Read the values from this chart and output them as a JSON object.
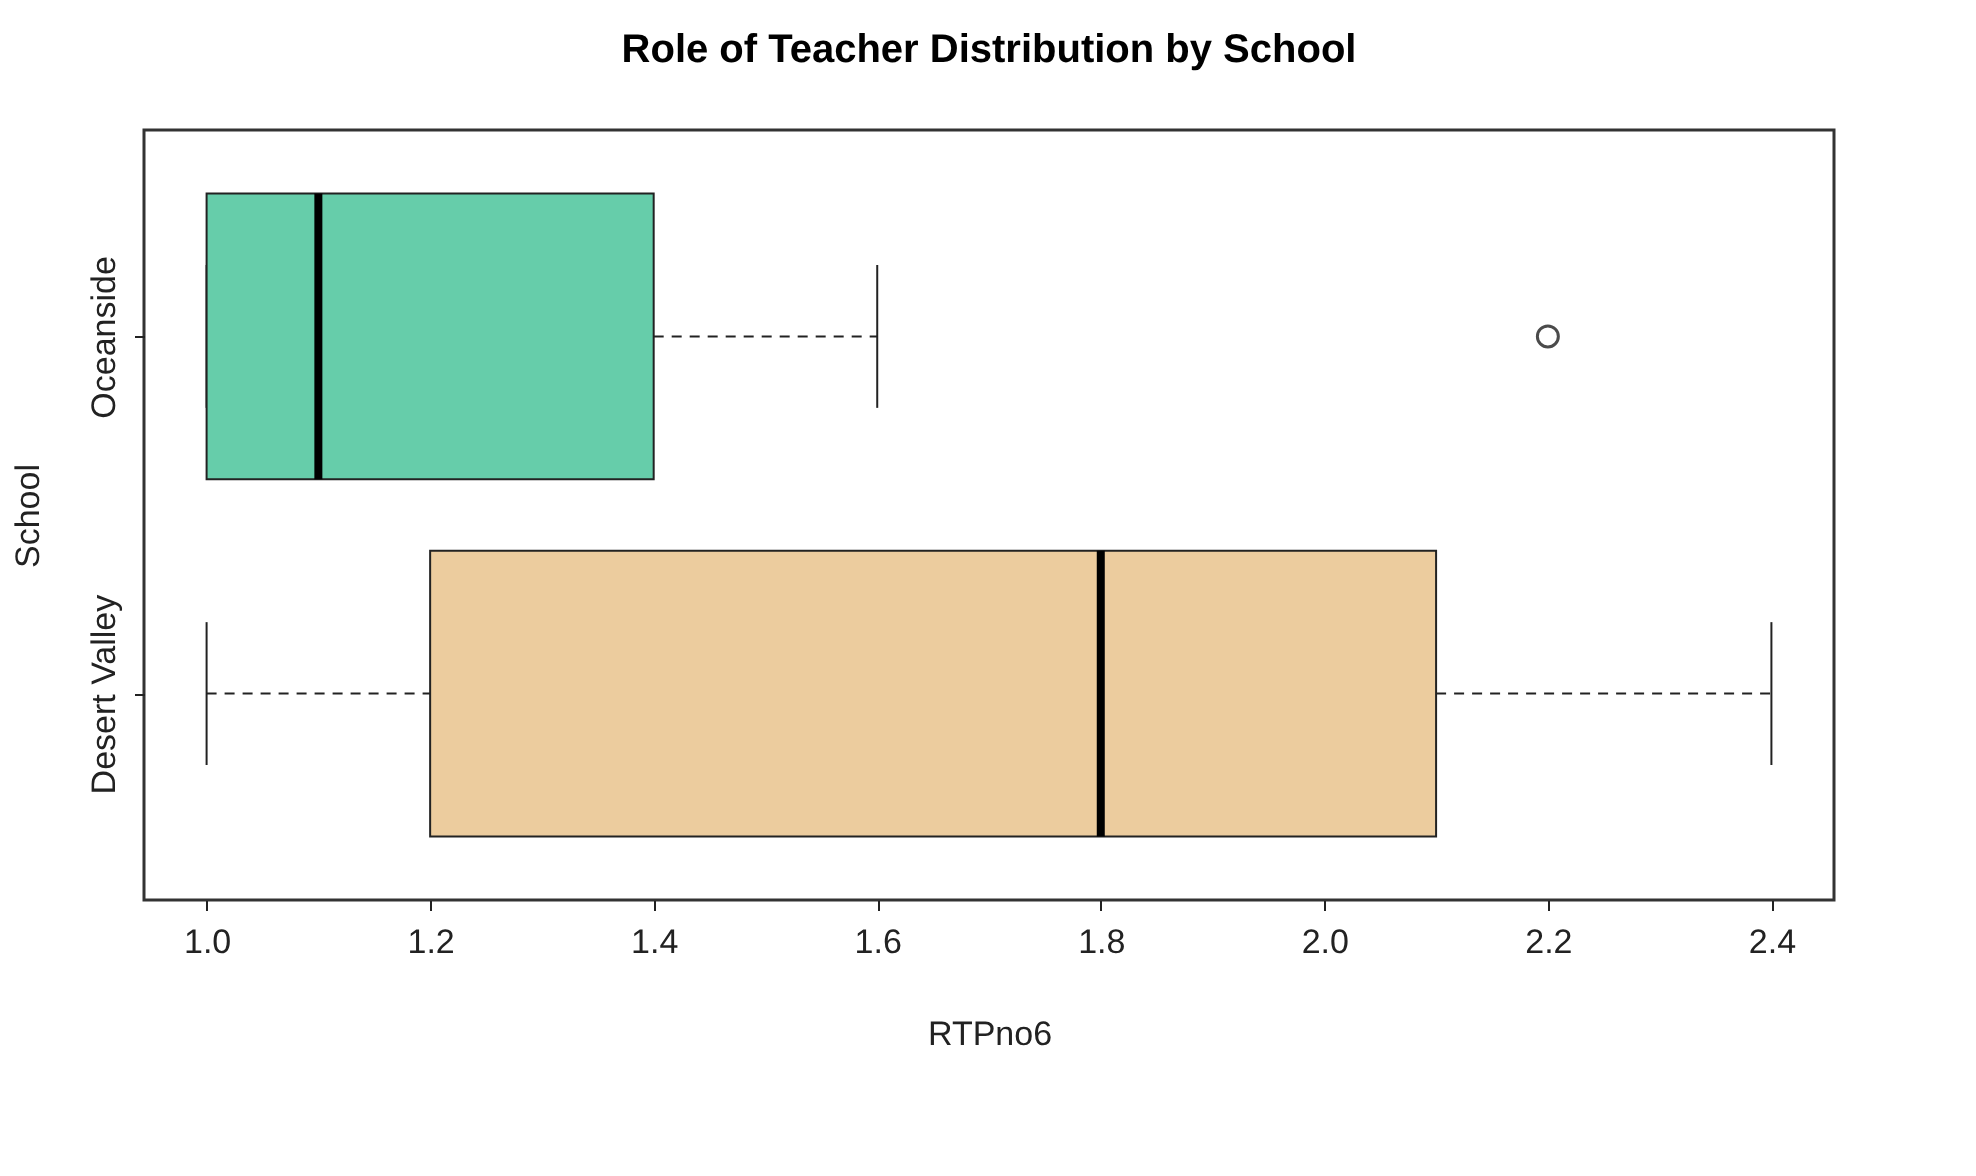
{
  "chart_data": {
    "type": "box",
    "title": "Role of Teacher Distribution by School",
    "xlabel": "RTPno6",
    "ylabel": "School",
    "orientation": "horizontal",
    "categories": [
      "Oceanside",
      "Desert Valley"
    ],
    "colors": [
      "#66cdaa",
      "#eccc9e"
    ],
    "boxes": [
      {
        "low": 1.0,
        "q1": 1.0,
        "median": 1.1,
        "q3": 1.4,
        "high": 1.6,
        "outliers": [
          2.2
        ]
      },
      {
        "low": 1.0,
        "q1": 1.2,
        "median": 1.8,
        "q3": 2.1,
        "high": 2.4
      }
    ],
    "xlim": [
      0.944,
      2.456
    ],
    "xticks": [
      {
        "value": 1,
        "label": "1.0"
      },
      1.2,
      1.4,
      1.6,
      1.8,
      {
        "value": 2,
        "label": "2.0"
      },
      2.2,
      2.4
    ]
  }
}
